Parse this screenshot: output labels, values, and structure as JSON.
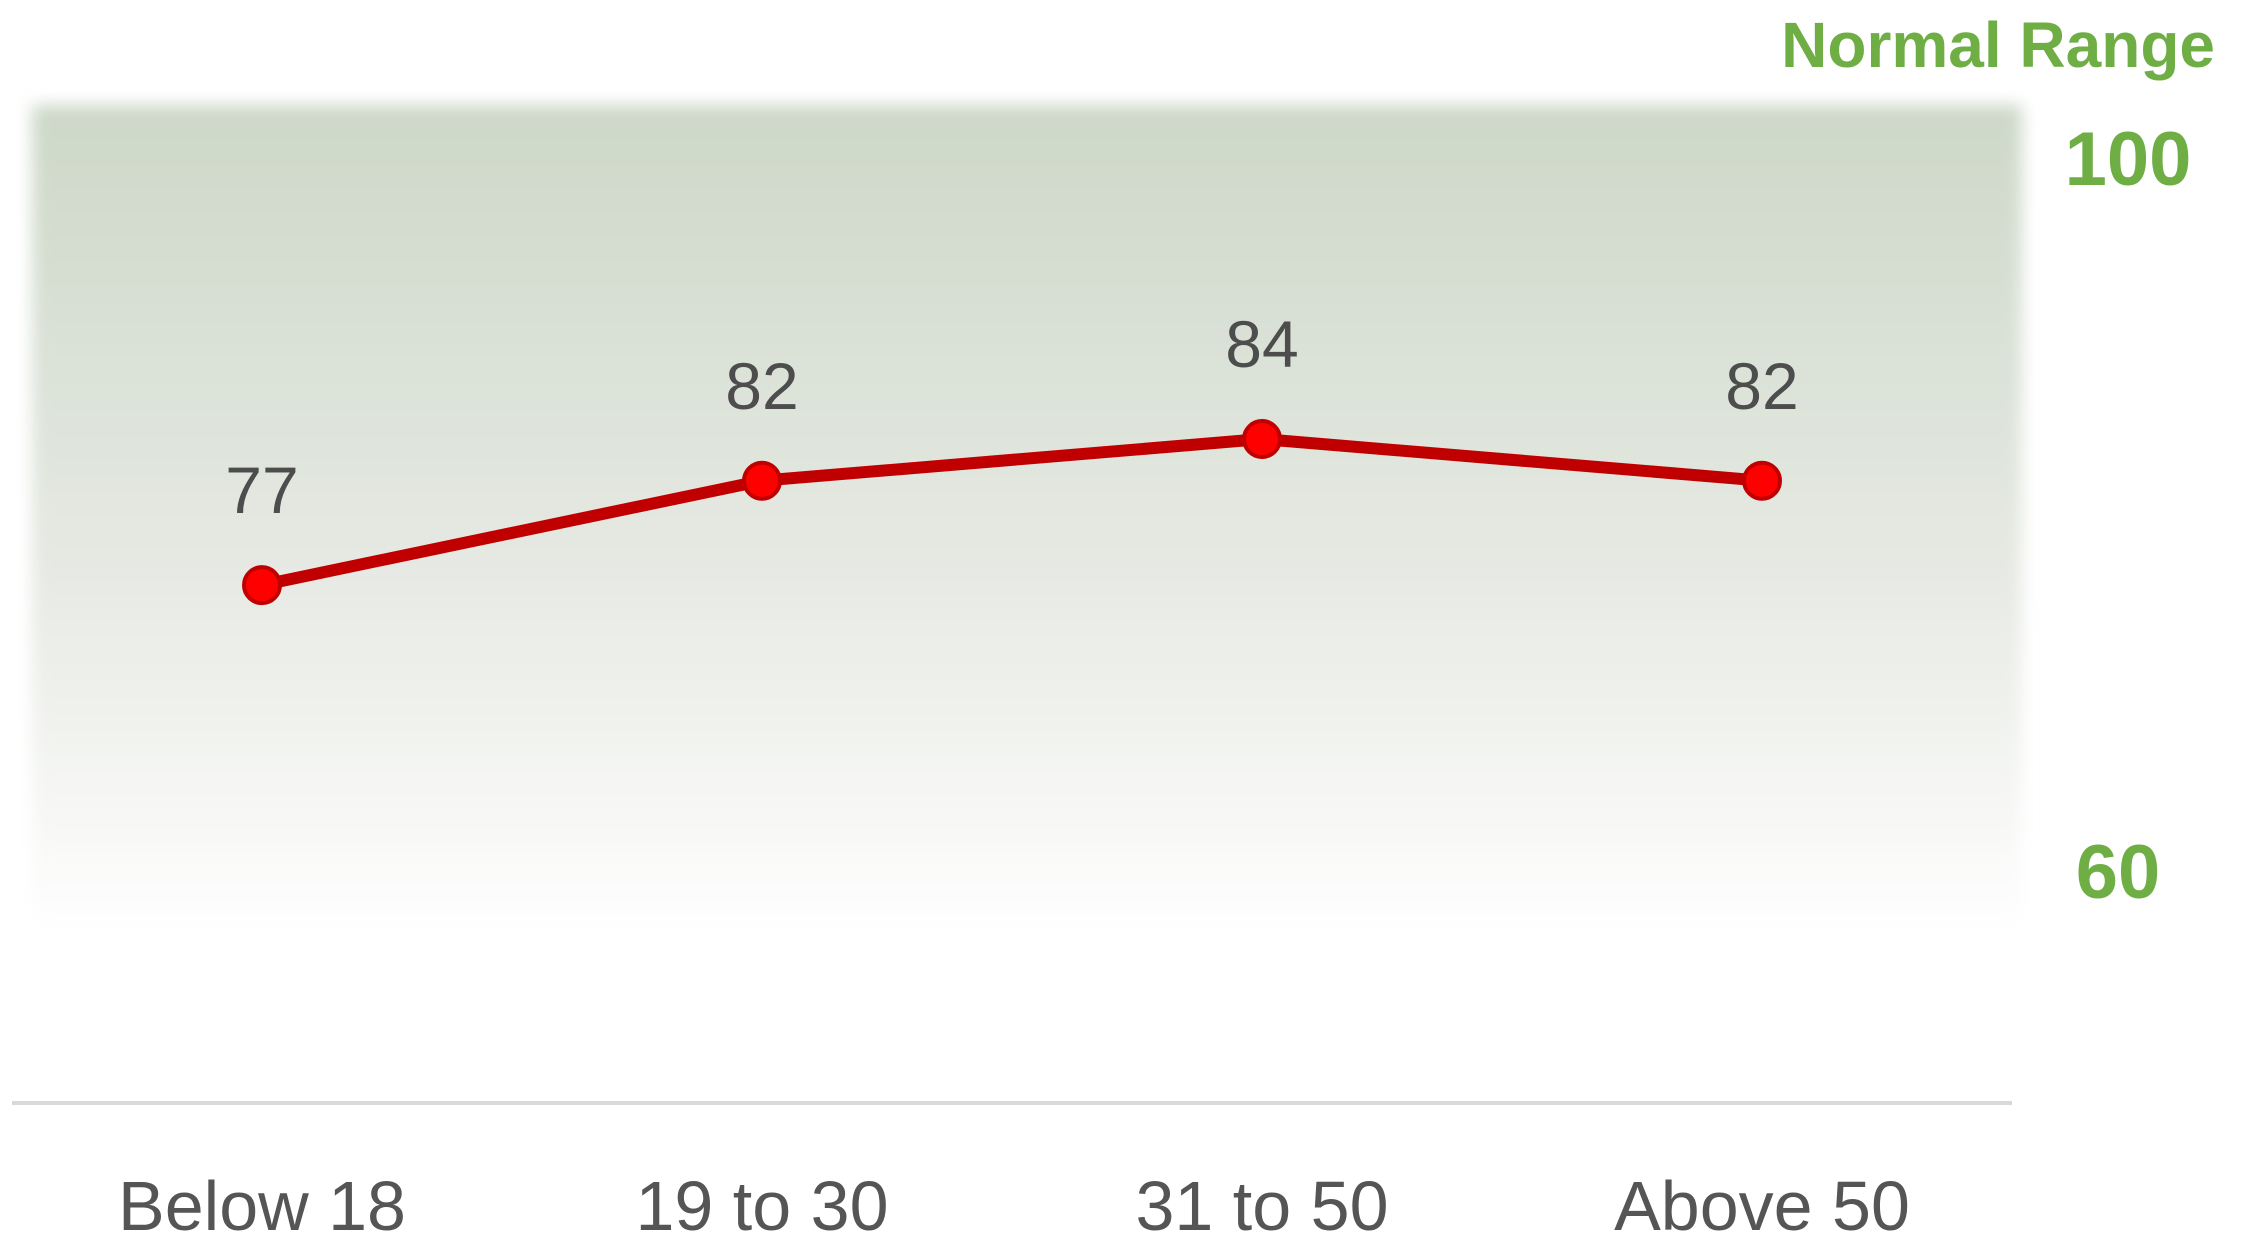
{
  "colors": {
    "line": "#c00000",
    "marker": "#ff0000",
    "range_text": "#6fae45",
    "band_top": "#cdd8c8",
    "band_bottom": "#ffffff",
    "tick_text": "#555555",
    "axis_line": "#d9d9d9"
  },
  "chart_data": {
    "type": "line",
    "categories": [
      "Below 18",
      "19 to 30",
      "31 to 50",
      "Above 50"
    ],
    "values": [
      77,
      82,
      84,
      82
    ],
    "data_labels": [
      "77",
      "82",
      "84",
      "82"
    ],
    "ylim": [
      60,
      100
    ],
    "normal_range": {
      "title": "Normal Range",
      "upper_label": "100",
      "lower_label": "60",
      "min": 60,
      "max": 100
    },
    "grid": false,
    "legend": "none"
  }
}
